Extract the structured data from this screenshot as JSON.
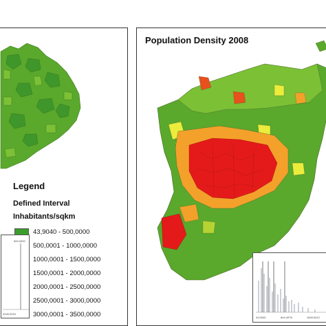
{
  "right_map": {
    "title": "Population Density 2008"
  },
  "legend": {
    "title": "Legend",
    "subtitle": "Defined Interval",
    "unit": "Inhabitants/sqkm",
    "classes": [
      {
        "label": "43,9040 - 500,0000",
        "color": "#3a9e2a"
      },
      {
        "label": "500,0001 - 1000,0000",
        "color": "#6fbb2e"
      },
      {
        "label": "1000,0001 - 1500,0000",
        "color": "#b6d334"
      },
      {
        "label": "1500,0001 - 2000,0000",
        "color": "#ecec3c"
      },
      {
        "label": "2000,0001 - 2500,0000",
        "color": "#f3a12a"
      },
      {
        "label": "2500,0001 - 3000,0000",
        "color": "#e8501c"
      },
      {
        "label": "3000,0001 - 3500,0000",
        "color": "#e41a1a"
      }
    ]
  },
  "left_inset": {
    "label_a": "500,0000",
    "label_b": "3249,2024"
  },
  "right_inset": {
    "label_a": "43,9040",
    "label_b": "844,4978",
    "label_c": "1649,5412"
  }
}
